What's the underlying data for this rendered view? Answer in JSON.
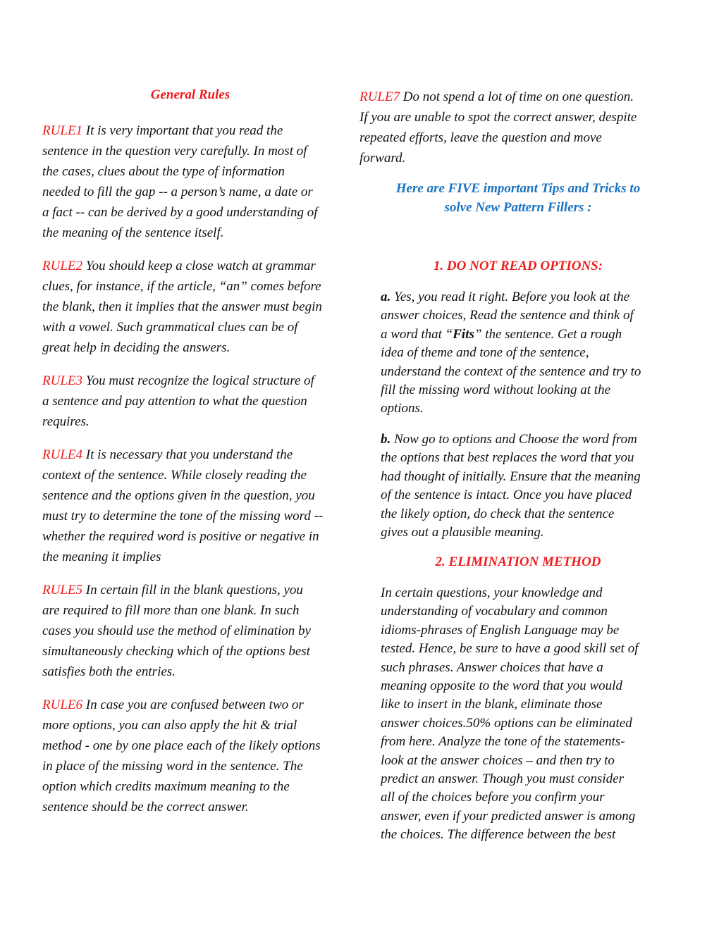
{
  "left": {
    "title": "General Rules",
    "rules": [
      {
        "label": "RULE1",
        "lines": [
          " It is very important that you read the",
          "sentence in the question very carefully. In most of",
          "the cases, clues about the type of information",
          "needed to fill the gap -- a person’s name, a date or",
          "a fact -- can be derived by a good understanding of",
          "the meaning of the sentence itself."
        ]
      },
      {
        "label": "RULE2",
        "lines": [
          " You should keep a close watch at grammar",
          "clues, for instance, if the article, “an” comes before",
          "the blank, then it implies that the answer must begin",
          "with a vowel. Such grammatical clues can be of",
          "great help in deciding the answers."
        ]
      },
      {
        "label": "RULE3",
        "lines": [
          " You must recognize the logical structure of",
          "a sentence and pay attention to what the question",
          "requires."
        ]
      },
      {
        "label": "RULE4",
        "lines": [
          " It is necessary that you understand the",
          "context of the sentence. While closely reading the",
          "sentence and the options given in the question, you",
          "must try to determine the tone of the missing word --",
          "whether the required word is positive or negative in",
          "the meaning it implies"
        ]
      },
      {
        "label": "RULE5",
        "lines": [
          " In certain fill in the blank questions, you",
          "are required to fill more than one blank. In such",
          "cases you should use the method of elimination by",
          "simultaneously checking which of the options best",
          "satisfies both the entries."
        ]
      },
      {
        "label": "RULE6",
        "lines": [
          " In case you are confused between two or",
          "more options, you can also apply the hit & trial",
          "method - one by one place each of the likely options",
          "in place of the missing word in the sentence. The",
          "option which credits maximum meaning to the",
          "sentence should be the correct answer."
        ]
      }
    ]
  },
  "right": {
    "rule7": {
      "label": "RULE7",
      "lines": [
        " Do not spend a lot of time on one question.",
        "If you are unable to spot the correct answer, despite",
        "repeated efforts, leave the question and move",
        "forward."
      ]
    },
    "tips_heading": [
      "Here are FIVE important Tips and Tricks to",
      "solve New Pattern Fillers :"
    ],
    "heading1": "1. DO NOT READ OPTIONS:",
    "tip_a": {
      "label": "a.",
      "line1": " Yes, you read it right. Before you look at the",
      "line2": "answer choices, Read the sentence and think of",
      "line3_pre": "a word that “",
      "line3_bold": "Fits",
      "line3_post": "” the sentence. Get a rough",
      "rest": [
        "idea of theme and tone of the sentence,",
        "understand the context of the sentence and try to",
        "fill the missing word without looking at the",
        "options."
      ]
    },
    "tip_b": {
      "label": "b.",
      "lines": [
        " Now go to options and Choose the word from",
        "the options that best replaces the word that you",
        "had thought of initially. Ensure that the meaning",
        "of the sentence is intact. Once you have placed",
        "the likely option, do check that the sentence",
        "gives out a plausible meaning."
      ]
    },
    "heading2": "2. ELIMINATION METHOD",
    "elimination": [
      "In certain questions, your knowledge and",
      "understanding of vocabulary and common",
      "idioms-phrases of English Language may be",
      "tested. Hence, be sure to have a good skill set of",
      "such phrases. Answer choices that have a",
      "meaning opposite to the word that you would",
      "like to insert in the blank, eliminate those",
      "answer choices.50% options can be eliminated",
      "from here. Analyze the tone of the statements-",
      "look at the answer choices – and then try to",
      "predict an answer. Though you must consider",
      "all of the choices before you confirm your",
      "answer, even if your predicted answer is among",
      "the choices. The difference between the best"
    ]
  },
  "colors": {
    "red": "#ee1c1c",
    "blue": "#1a73c0",
    "text": "#111111"
  }
}
